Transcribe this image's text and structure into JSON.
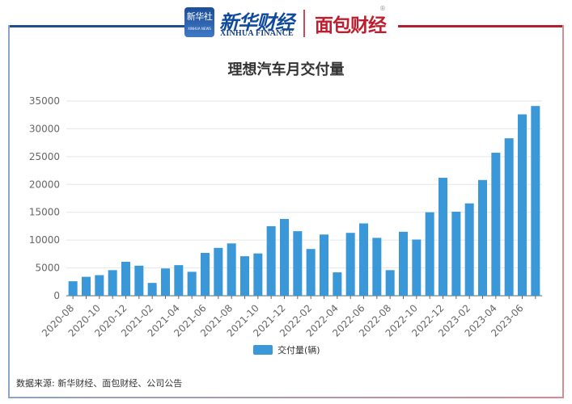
{
  "header": {
    "logo_xinhua_badge": "新华社",
    "logo_xinhua_badge_sub": "XINHUA NEWS",
    "logo_xhcj": "新华财经",
    "logo_xhcj_en": "XINHUA FINANCE",
    "logo_mbcj": "面包财经"
  },
  "colors": {
    "bar": "#3a98d8",
    "grid": "#e6e6e6",
    "axis": "#666666",
    "text": "#333333",
    "frame_left": "#1f4f8f",
    "frame_right": "#b01f2e"
  },
  "chart_data": {
    "type": "bar",
    "title": "理想汽车月交付量",
    "xlabel": "",
    "ylabel": "",
    "ylim": [
      0,
      35000
    ],
    "yticks": [
      0,
      5000,
      10000,
      15000,
      20000,
      25000,
      30000,
      35000
    ],
    "grid": true,
    "legend_position": "bottom-center",
    "series": [
      {
        "name": "交付量(辆)",
        "color": "#3a98d8",
        "values": [
          2600,
          3400,
          3700,
          4600,
          6100,
          5400,
          2300,
          4900,
          5500,
          4300,
          7700,
          8600,
          9400,
          7100,
          7600,
          12500,
          13800,
          11600,
          8400,
          11000,
          4200,
          11300,
          13000,
          10400,
          4600,
          11500,
          10100,
          15000,
          21200,
          15100,
          16600,
          20800,
          25700,
          28300,
          32600,
          34100
        ]
      }
    ],
    "categories": [
      "2020-08",
      "2020-09",
      "2020-10",
      "2020-11",
      "2020-12",
      "2021-01",
      "2021-02",
      "2021-03",
      "2021-04",
      "2021-05",
      "2021-06",
      "2021-07",
      "2021-08",
      "2021-09",
      "2021-10",
      "2021-11",
      "2021-12",
      "2022-01",
      "2022-02",
      "2022-03",
      "2022-04",
      "2022-05",
      "2022-06",
      "2022-07",
      "2022-08",
      "2022-09",
      "2022-10",
      "2022-11",
      "2022-12",
      "2023-01",
      "2023-02",
      "2023-03",
      "2023-04",
      "2023-05",
      "2023-06",
      "2023-07"
    ],
    "visible_x_ticks": [
      "2020-08",
      "2020-10",
      "2020-12",
      "2021-02",
      "2021-04",
      "2021-06",
      "2021-08",
      "2021-10",
      "2021-12",
      "2022-02",
      "2022-04",
      "2022-06",
      "2022-08",
      "2022-10",
      "2022-12",
      "2023-02",
      "2023-04",
      "2023-06"
    ]
  },
  "footer": {
    "source": "数据来源: 新华财经、面包财经、公司公告"
  }
}
